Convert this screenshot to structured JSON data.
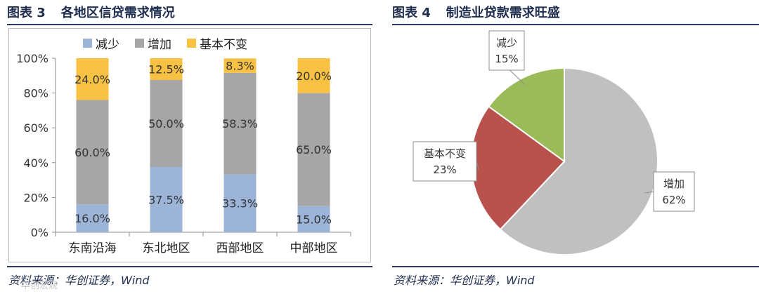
{
  "left": {
    "fig_num": "图表 3",
    "fig_title": "各地区信贷需求情况",
    "source": "资料来源：华创证券，Wind"
  },
  "right": {
    "fig_num": "图表 4",
    "fig_title": "制造业贷款需求旺盛",
    "source": "资料来源：华创证券，Wind"
  },
  "watermark": "华创宏观",
  "chart_data": [
    {
      "type": "bar",
      "stacked": true,
      "title": "",
      "categories": [
        "东南沿海",
        "东北地区",
        "西部地区",
        "中部地区"
      ],
      "series": [
        {
          "name": "减少",
          "values": [
            16.0,
            37.5,
            33.3,
            15.0
          ],
          "labels": [
            "16.0%",
            "37.5%",
            "33.3%",
            "15.0%"
          ],
          "color": "#9cb4d8"
        },
        {
          "name": "增加",
          "values": [
            60.0,
            50.0,
            58.3,
            65.0
          ],
          "labels": [
            "60.0%",
            "50.0%",
            "58.3%",
            "65.0%"
          ],
          "color": "#a6a6a6"
        },
        {
          "name": "基本不变",
          "values": [
            24.0,
            12.5,
            8.3,
            20.0
          ],
          "labels": [
            "24.0%",
            "12.5%",
            "8.3%",
            "20.0%"
          ],
          "color": "#f7c244"
        }
      ],
      "ylim": [
        0,
        100
      ],
      "yticks": [
        "0%",
        "20%",
        "40%",
        "60%",
        "80%",
        "100%"
      ],
      "legend": "top",
      "grid": false
    },
    {
      "type": "pie",
      "title": "",
      "slices": [
        {
          "label": "增加",
          "value": 62,
          "value_label": "62%",
          "color": "#c0c0c0"
        },
        {
          "label": "基本不变",
          "value": 23,
          "value_label": "23%",
          "color": "#b9524d"
        },
        {
          "label": "减少",
          "value": 15,
          "value_label": "15%",
          "color": "#9bbb59"
        }
      ],
      "legend": "none"
    }
  ]
}
